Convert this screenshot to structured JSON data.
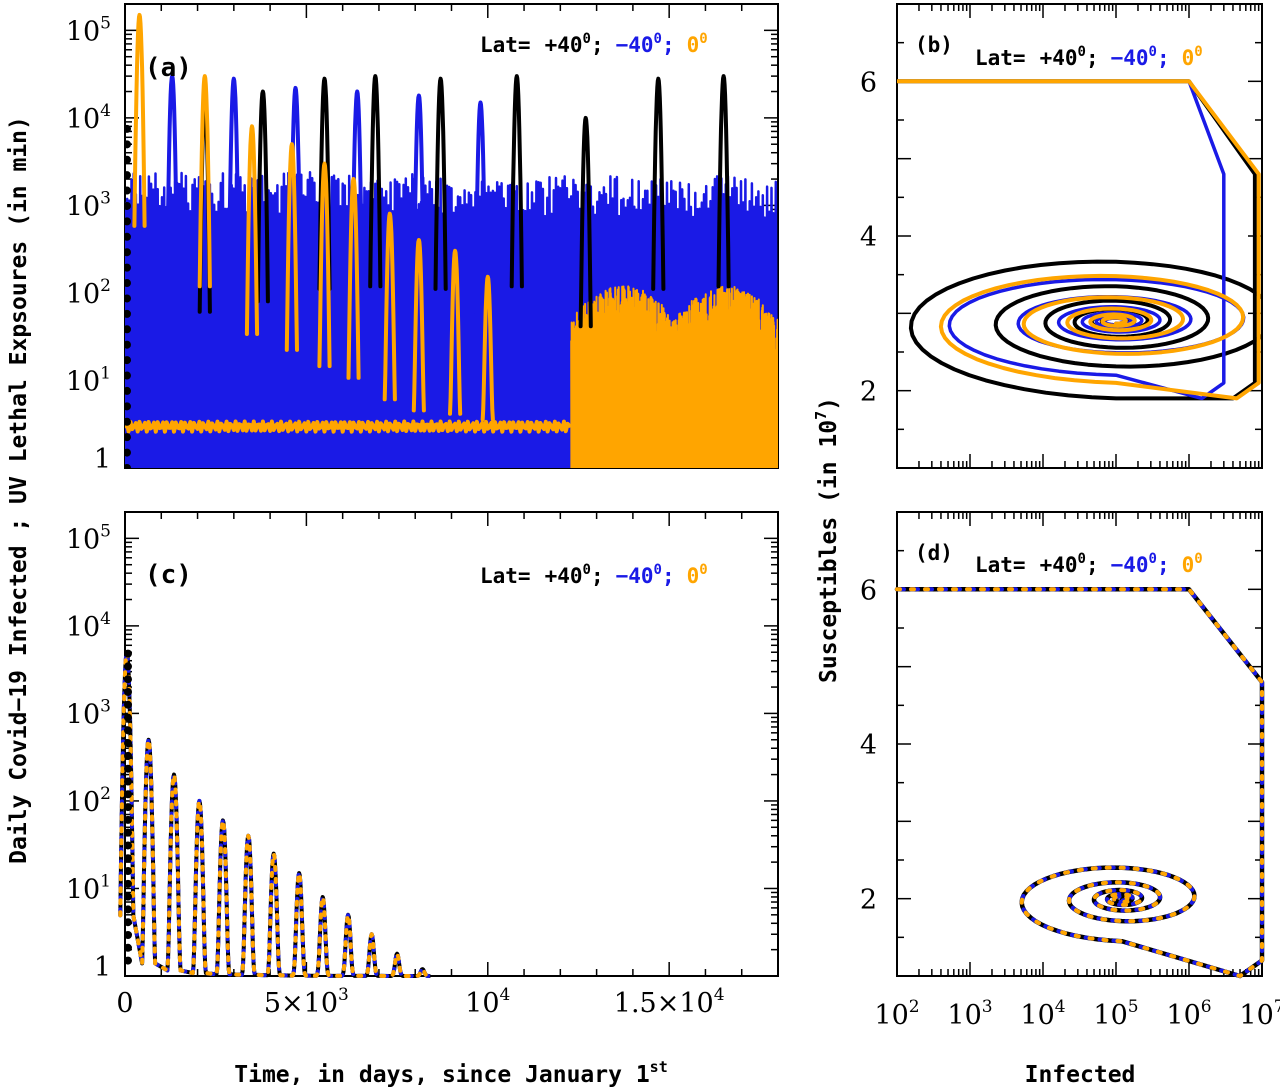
{
  "figure": {
    "xlabel_time_prefix": "Time, in days, since January 1",
    "xlabel_time_sup": "st",
    "xlabel_infected": "Infected",
    "ylabel_left": "Daily Covid−19 Infected ; UV Lethal Expsoures (in min)",
    "ylabel_right_prefix": "Susceptibles (in 10",
    "ylabel_right_sup": "7",
    "ylabel_right_suffix": ")"
  },
  "legend": {
    "lat_label": "Lat=",
    "north": "+40",
    "south": "−40",
    "equator": "0",
    "degree_sup": "0",
    "separator": ";",
    "colors": {
      "north": "#000000",
      "south": "#1a1ae6",
      "equator": "#ffa500"
    }
  },
  "panels": {
    "a": {
      "label": "(a)"
    },
    "b": {
      "label": "(b)"
    },
    "c": {
      "label": "(c)"
    },
    "d": {
      "label": "(d)"
    }
  },
  "ticks": {
    "log_y": [
      {
        "base": "1",
        "exp": ""
      },
      {
        "base": "10",
        "exp": "1"
      },
      {
        "base": "10",
        "exp": "2"
      },
      {
        "base": "10",
        "exp": "3"
      },
      {
        "base": "10",
        "exp": "4"
      },
      {
        "base": "10",
        "exp": "5"
      }
    ],
    "time_x": [
      {
        "base": "0",
        "exp": ""
      },
      {
        "base": "5×10",
        "exp": "3"
      },
      {
        "base": "10",
        "exp": "4"
      },
      {
        "base": "1.5×10",
        "exp": "4"
      }
    ],
    "susc_y": [
      "2",
      "4",
      "6"
    ],
    "infected_x": [
      {
        "base": "10",
        "exp": "2"
      },
      {
        "base": "10",
        "exp": "3"
      },
      {
        "base": "10",
        "exp": "4"
      },
      {
        "base": "10",
        "exp": "5"
      },
      {
        "base": "10",
        "exp": "6"
      },
      {
        "base": "10",
        "exp": "7"
      }
    ]
  },
  "chart_data": [
    {
      "panel": "a",
      "type": "line",
      "xlabel": "Time, in days, since January 1st",
      "ylabel": "Daily Covid-19 Infected ; UV Lethal Expsoures (in min)",
      "xlim": [
        0,
        18000
      ],
      "ylim": [
        1,
        200000
      ],
      "yscale": "log",
      "series": [
        {
          "name": "Lat= +40°",
          "color": "#000000",
          "peak_times": [
            2200,
            3800,
            5500,
            6900,
            8700,
            10800,
            12700,
            14700,
            16500
          ],
          "peak_values": [
            15000,
            20000,
            28000,
            30000,
            28000,
            30000,
            10000,
            28000,
            30000
          ],
          "baseline": 3
        },
        {
          "name": "Lat= −40°",
          "color": "#1a1ae6",
          "peak_times": [
            1300,
            3000,
            4700,
            6400,
            8100,
            9800
          ],
          "peak_values": [
            30000,
            28000,
            22000,
            20000,
            18000,
            15000
          ],
          "baseline": 3
        },
        {
          "name": "Lat= 0°",
          "color": "#ffa500",
          "peak_times": [
            400,
            2200,
            3500,
            4600,
            5500,
            6300,
            7300,
            8100,
            9100,
            10000
          ],
          "peak_values": [
            150000,
            30000,
            8000,
            5000,
            3000,
            2000,
            800,
            400,
            300,
            150
          ],
          "baseline": 3
        }
      ]
    },
    {
      "panel": "b",
      "type": "line",
      "xlabel": "Infected",
      "ylabel": "Susceptibles (in 10^7)",
      "xlim": [
        100,
        10000000
      ],
      "ylim": [
        1,
        7
      ],
      "xscale": "log",
      "series": [
        {
          "name": "Lat= +40°",
          "color": "#000000",
          "start": [
            100,
            6
          ],
          "center": [
            100000,
            2.9
          ]
        },
        {
          "name": "Lat= −40°",
          "color": "#1a1ae6",
          "start": [
            100,
            6
          ],
          "center": [
            100000,
            2.9
          ]
        },
        {
          "name": "Lat= 0°",
          "color": "#ffa500",
          "start": [
            100,
            6
          ],
          "center": [
            100000,
            2.9
          ]
        }
      ]
    },
    {
      "panel": "c",
      "type": "line",
      "xlabel": "Time, in days, since January 1st",
      "ylabel": "Daily Covid-19 Infected ; UV Lethal Expsoures (in min)",
      "xlim": [
        0,
        18000
      ],
      "ylim": [
        1,
        200000
      ],
      "yscale": "log",
      "series": [
        {
          "name": "Lat= +40° / −40° / 0° (overlapping)",
          "color": "#000000",
          "peak_times": [
            50,
            650,
            1350,
            2050,
            2700,
            3400,
            4100,
            4800,
            5450,
            6150,
            6800,
            7500,
            8200
          ],
          "peak_values": [
            5000,
            500,
            200,
            100,
            60,
            40,
            25,
            15,
            8,
            5,
            3,
            1.8,
            1.2
          ]
        }
      ]
    },
    {
      "panel": "d",
      "type": "line",
      "xlabel": "Infected",
      "ylabel": "Susceptibles (in 10^7)",
      "xlim": [
        100,
        10000000
      ],
      "ylim": [
        1,
        7
      ],
      "xscale": "log",
      "series": [
        {
          "name": "Lat= +40° / −40° / 0° (overlapping)",
          "color": "#000000",
          "start": [
            100,
            6
          ],
          "center": [
            100000,
            2.0
          ]
        }
      ]
    }
  ]
}
